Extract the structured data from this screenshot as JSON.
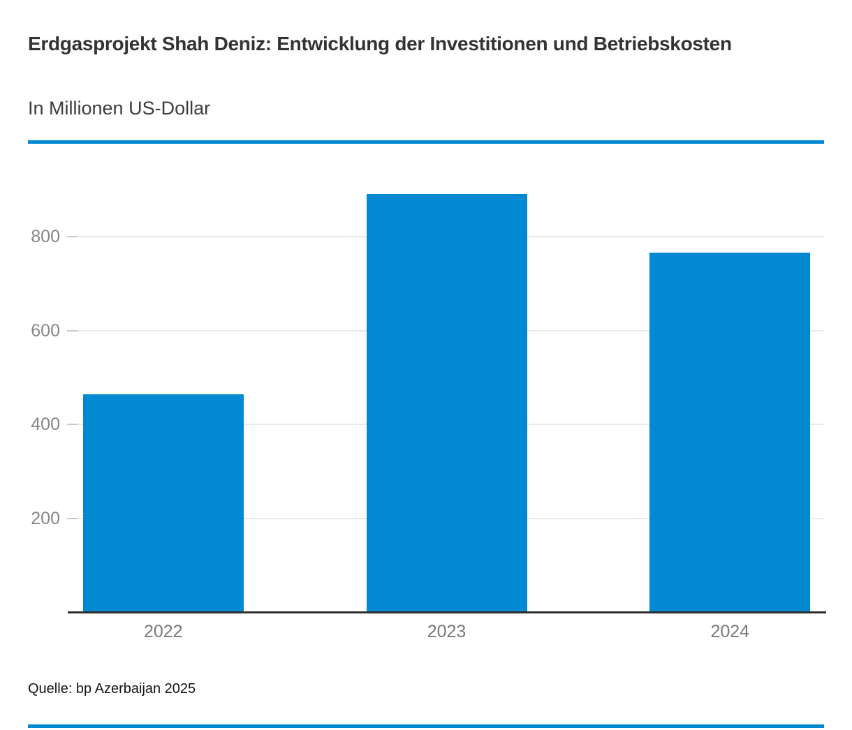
{
  "header": {
    "title": "Erdgasprojekt Shah Deniz: Entwicklung der Investitionen und Betriebskosten",
    "subtitle": "In Millionen US-Dollar"
  },
  "source": "Quelle: bp Azerbaijan 2025",
  "colors": {
    "bar": "#0289d1",
    "accent_rule": "#0289d1",
    "grid": "#e9e9e9",
    "tick": "#c9c9c9",
    "axis_line": "#2d2d2d",
    "axis_text": "#868686",
    "title_text": "#333333"
  },
  "chart_data": {
    "type": "bar",
    "categories": [
      "2022",
      "2023",
      "2024"
    ],
    "values": [
      462,
      889,
      765
    ],
    "title": "Erdgasprojekt Shah Deniz: Entwicklung der Investitionen und Betriebskosten",
    "subtitle": "In Millionen US-Dollar",
    "xlabel": "",
    "ylabel": "In Millionen US-Dollar",
    "ylim": [
      0,
      965
    ],
    "yticks": [
      200,
      400,
      600,
      800
    ],
    "grid": "horizontal-only",
    "legend": "none",
    "bar_color": "#0289d1",
    "source": "Quelle: bp Azerbaijan 2025"
  }
}
